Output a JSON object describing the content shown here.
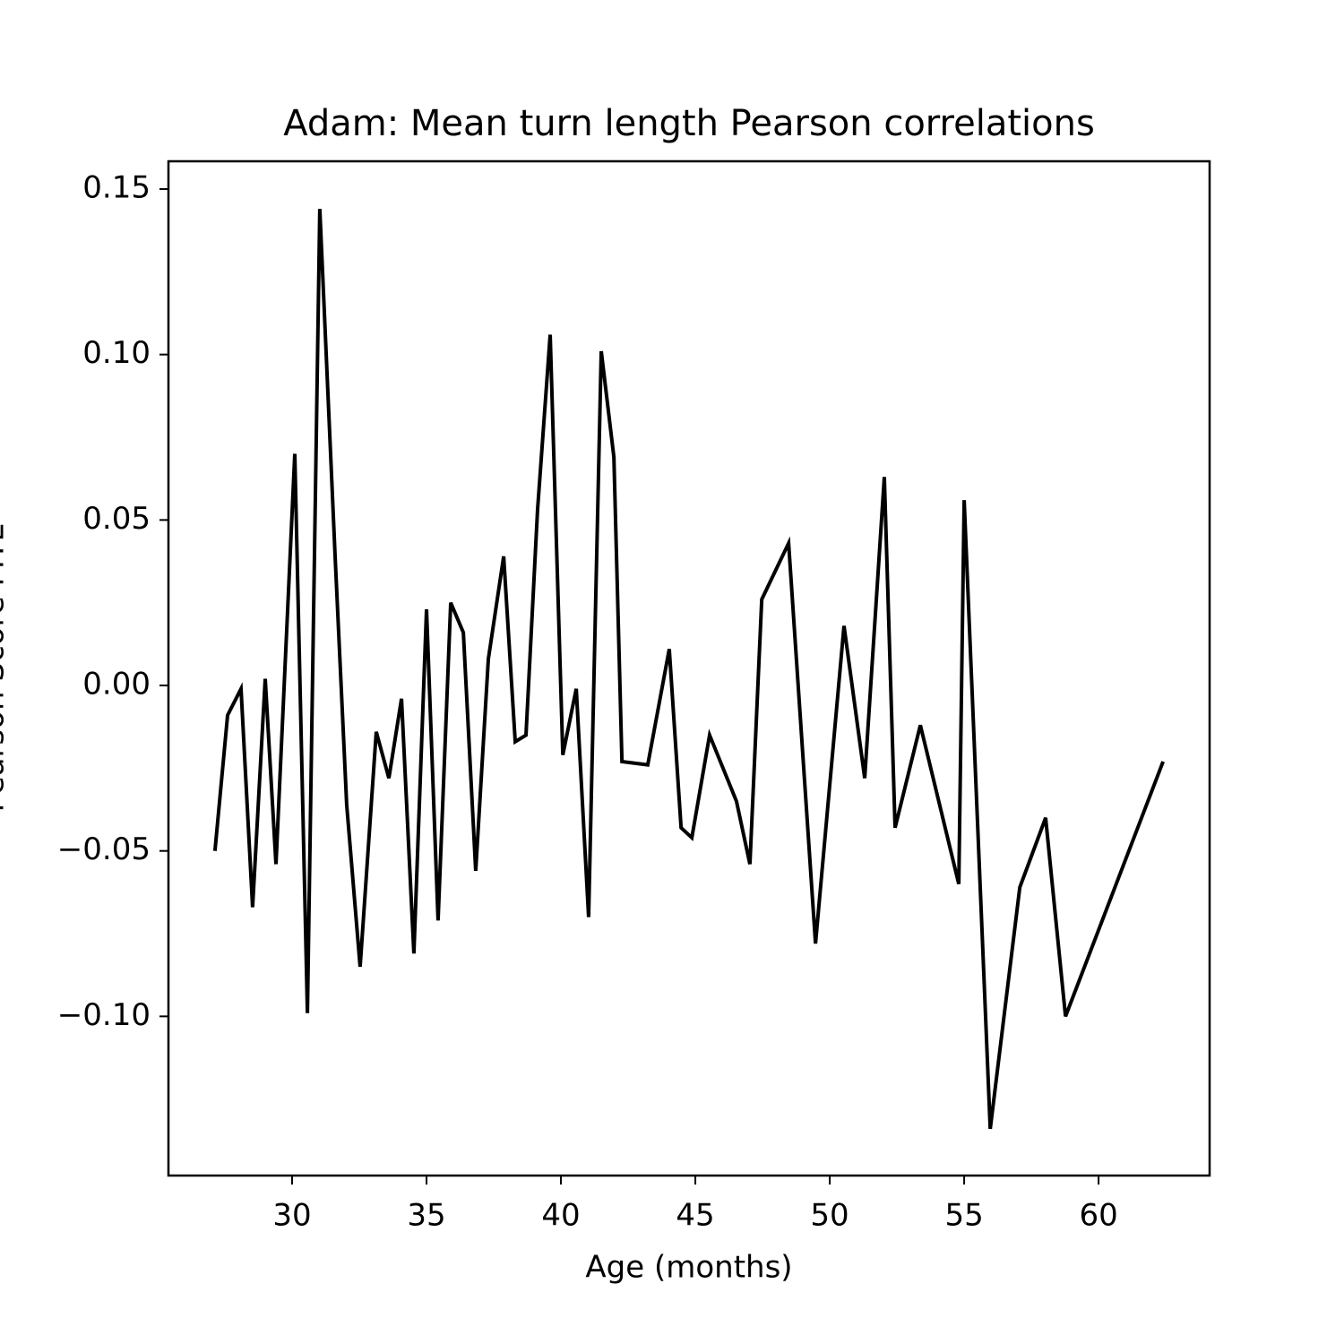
{
  "chart_data": {
    "type": "line",
    "title": "Adam: Mean turn length Pearson correlations",
    "x_label": "Age (months)",
    "y_label": "Pearson Score MTL",
    "x": [
      27.13,
      27.6,
      28.1,
      28.53,
      29.0,
      29.4,
      30.1,
      30.57,
      31.03,
      31.6,
      32.03,
      32.53,
      33.13,
      33.6,
      34.07,
      34.53,
      35.0,
      35.43,
      35.9,
      36.37,
      36.83,
      37.3,
      37.87,
      38.3,
      38.7,
      39.13,
      39.6,
      40.07,
      40.57,
      41.03,
      41.5,
      41.97,
      42.27,
      43.23,
      44.03,
      44.47,
      44.87,
      45.53,
      46.53,
      47.03,
      47.47,
      48.47,
      49.47,
      50.53,
      51.3,
      52.03,
      52.43,
      53.37,
      54.8,
      55.0,
      55.97,
      57.07,
      58.03,
      58.77,
      62.4
    ],
    "series": [
      {
        "name": "Adam",
        "color": "#000000",
        "values": [
          -0.05,
          -0.009,
          -0.001,
          -0.067,
          0.002,
          -0.054,
          0.07,
          -0.099,
          0.144,
          0.039,
          -0.036,
          -0.085,
          -0.014,
          -0.028,
          -0.004,
          -0.081,
          0.023,
          -0.071,
          0.025,
          0.016,
          -0.056,
          0.008,
          0.039,
          -0.017,
          -0.015,
          0.053,
          0.106,
          -0.021,
          -0.001,
          -0.07,
          0.101,
          0.069,
          -0.023,
          -0.024,
          0.011,
          -0.043,
          -0.046,
          -0.015,
          -0.035,
          -0.054,
          0.026,
          0.043,
          -0.078,
          0.018,
          -0.028,
          0.063,
          -0.043,
          -0.012,
          -0.06,
          0.056,
          -0.134,
          -0.061,
          -0.04,
          -0.1,
          -0.023
        ]
      }
    ],
    "xlim": [
      25.4,
      64.13
    ],
    "ylim": [
      -0.1481,
      0.1584
    ],
    "xticks": [
      30,
      35,
      40,
      45,
      50,
      55,
      60
    ],
    "yticks": [
      0.15,
      {
        "value": 0.1,
        "label": "0.10"
      },
      0.05,
      {
        "value": 0,
        "label": "0.00"
      },
      {
        "value": -0.05,
        "label": "−0.05"
      },
      {
        "value": -0.1,
        "label": "−0.10"
      }
    ]
  }
}
